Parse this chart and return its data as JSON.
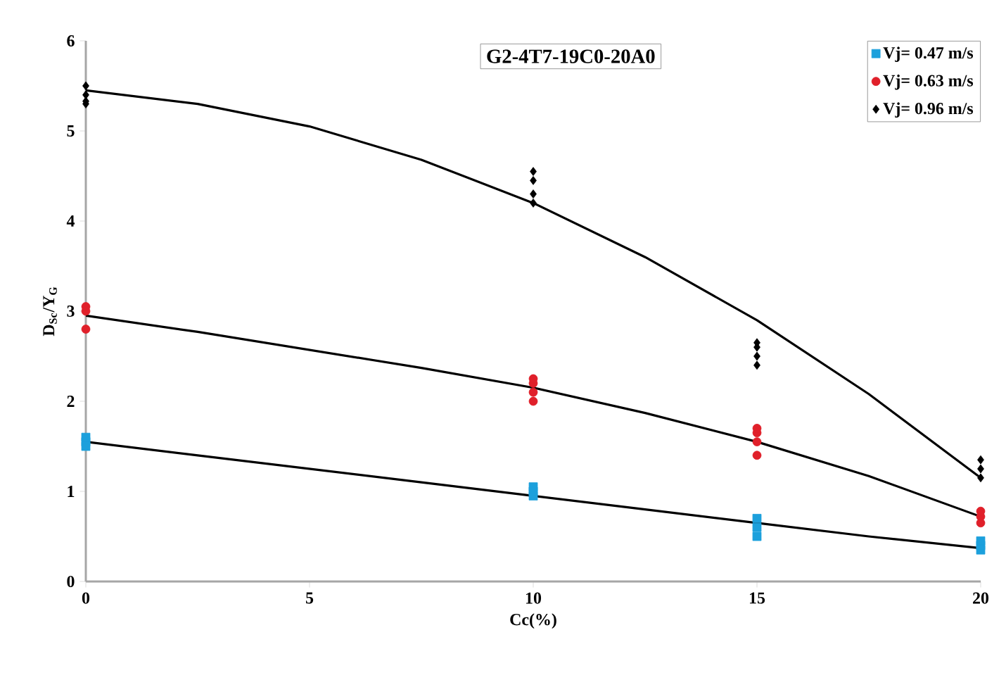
{
  "chart_data": {
    "type": "scatter",
    "xlabel": "Cc(%)",
    "ylabel": "D$_{Sc}$/Y$_{G}$",
    "annotations": [
      "G2-4T7-19C0-20A0"
    ],
    "xlim": [
      0,
      20
    ],
    "ylim": [
      0,
      6
    ],
    "xticks": [
      0,
      5,
      10,
      15,
      20
    ],
    "yticks": [
      0,
      1,
      2,
      3,
      4,
      5,
      6
    ],
    "legend": "top right",
    "grid": false,
    "series": [
      {
        "name": "Vj= 0.47 m/s",
        "color": "#1ca0dc",
        "marker": "square",
        "x": [
          0,
          0,
          0,
          10,
          10,
          10,
          15,
          15,
          15,
          20,
          20,
          20
        ],
        "values": [
          1.5,
          1.55,
          1.6,
          0.95,
          1.0,
          1.05,
          0.5,
          0.6,
          0.7,
          0.35,
          0.4,
          0.45
        ]
      },
      {
        "name": "Vj= 0.63 m/s",
        "color": "#e0202a",
        "marker": "circle",
        "x": [
          0,
          0,
          0,
          10,
          10,
          10,
          10,
          15,
          15,
          15,
          15,
          20,
          20,
          20
        ],
        "values": [
          2.8,
          3.0,
          3.05,
          2.0,
          2.1,
          2.2,
          2.25,
          1.4,
          1.55,
          1.65,
          1.7,
          0.65,
          0.72,
          0.78
        ]
      },
      {
        "name": "Vj= 0.96 m/s",
        "color": "#000000",
        "marker": "diamond",
        "x": [
          0,
          0,
          0,
          0,
          10,
          10,
          10,
          10,
          15,
          15,
          15,
          15,
          20,
          20,
          20
        ],
        "values": [
          5.3,
          5.33,
          5.4,
          5.5,
          4.2,
          4.3,
          4.45,
          4.55,
          2.4,
          2.5,
          2.6,
          2.65,
          1.15,
          1.25,
          1.35
        ]
      },
      {
        "type": "line",
        "color": "#000000",
        "marker": "none",
        "x": [
          0,
          2.5,
          5,
          7.5,
          10,
          12.5,
          15,
          17.5,
          20
        ],
        "values": [
          1.55,
          1.4,
          1.25,
          1.1,
          0.95,
          0.8,
          0.65,
          0.5,
          0.37
        ]
      },
      {
        "type": "line",
        "color": "#000000",
        "marker": "none",
        "x": [
          0,
          2.5,
          5,
          7.5,
          10,
          12.5,
          15,
          17.5,
          20
        ],
        "values": [
          2.95,
          2.77,
          2.57,
          2.37,
          2.15,
          1.87,
          1.55,
          1.17,
          0.72
        ]
      },
      {
        "type": "line",
        "color": "#000000",
        "marker": "none",
        "x": [
          0,
          2.5,
          5,
          7.5,
          10,
          12.5,
          15,
          17.5,
          20
        ],
        "values": [
          5.45,
          5.3,
          5.05,
          4.68,
          4.2,
          3.6,
          2.9,
          2.08,
          1.15
        ]
      }
    ]
  }
}
